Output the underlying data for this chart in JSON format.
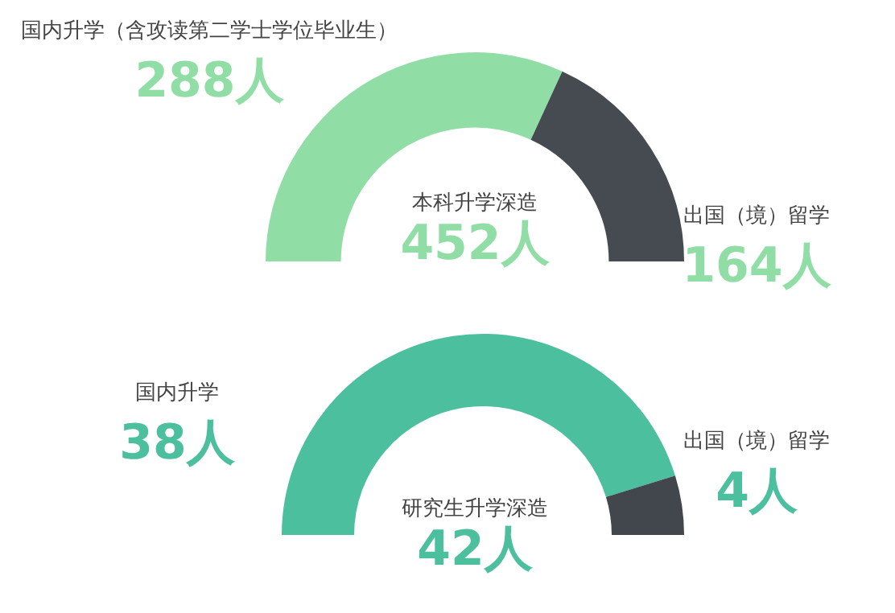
{
  "chart_data": [
    {
      "type": "donut",
      "title": "本科升学深造",
      "annotations": [
        "452人"
      ],
      "categories": [
        "国内升学（含攻读第二学士学位毕业生）",
        "出国（境）留学"
      ],
      "values": [
        288,
        164
      ],
      "colors": [
        "#90dea6",
        "#464b51"
      ],
      "value_labels": [
        "288人",
        "164人"
      ],
      "legend": false
    },
    {
      "type": "donut",
      "title": "研究生升学深造",
      "annotations": [
        "42人"
      ],
      "categories": [
        "国内升学",
        "出国（境）留学"
      ],
      "values": [
        38,
        4
      ],
      "colors": [
        "#4cbf9f",
        "#41474d"
      ],
      "value_labels": [
        "38人",
        "4人"
      ],
      "legend": false
    }
  ]
}
